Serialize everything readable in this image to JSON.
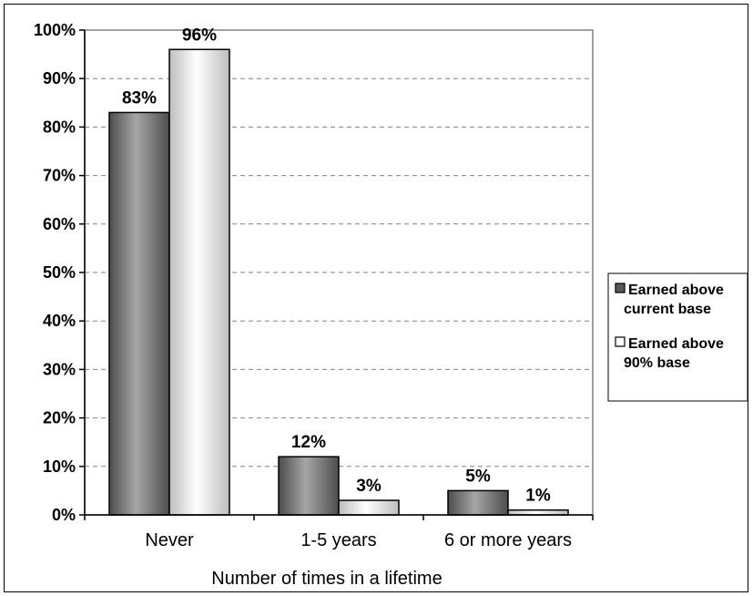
{
  "chart_data": {
    "type": "bar",
    "title": "",
    "xlabel": "Number of times in a lifetime",
    "ylabel": "",
    "ylim": [
      0,
      100
    ],
    "yticks": [
      "0%",
      "10%",
      "20%",
      "30%",
      "40%",
      "50%",
      "60%",
      "70%",
      "80%",
      "90%",
      "100%"
    ],
    "categories": [
      "Never",
      "1-5 years",
      "6 or more years"
    ],
    "series": [
      {
        "name": "Earned above current base",
        "legend_lines": [
          "Earned above",
          "current base"
        ],
        "values": [
          83,
          12,
          5
        ],
        "labels": [
          "83%",
          "12%",
          "5%"
        ],
        "color": "#808080"
      },
      {
        "name": "Earned above 90% base",
        "legend_lines": [
          "Earned above",
          "90% base"
        ],
        "values": [
          96,
          3,
          1
        ],
        "labels": [
          "96%",
          "3%",
          "1%"
        ],
        "color": "#ffffff"
      }
    ],
    "grid": true,
    "legend_position": "right"
  }
}
